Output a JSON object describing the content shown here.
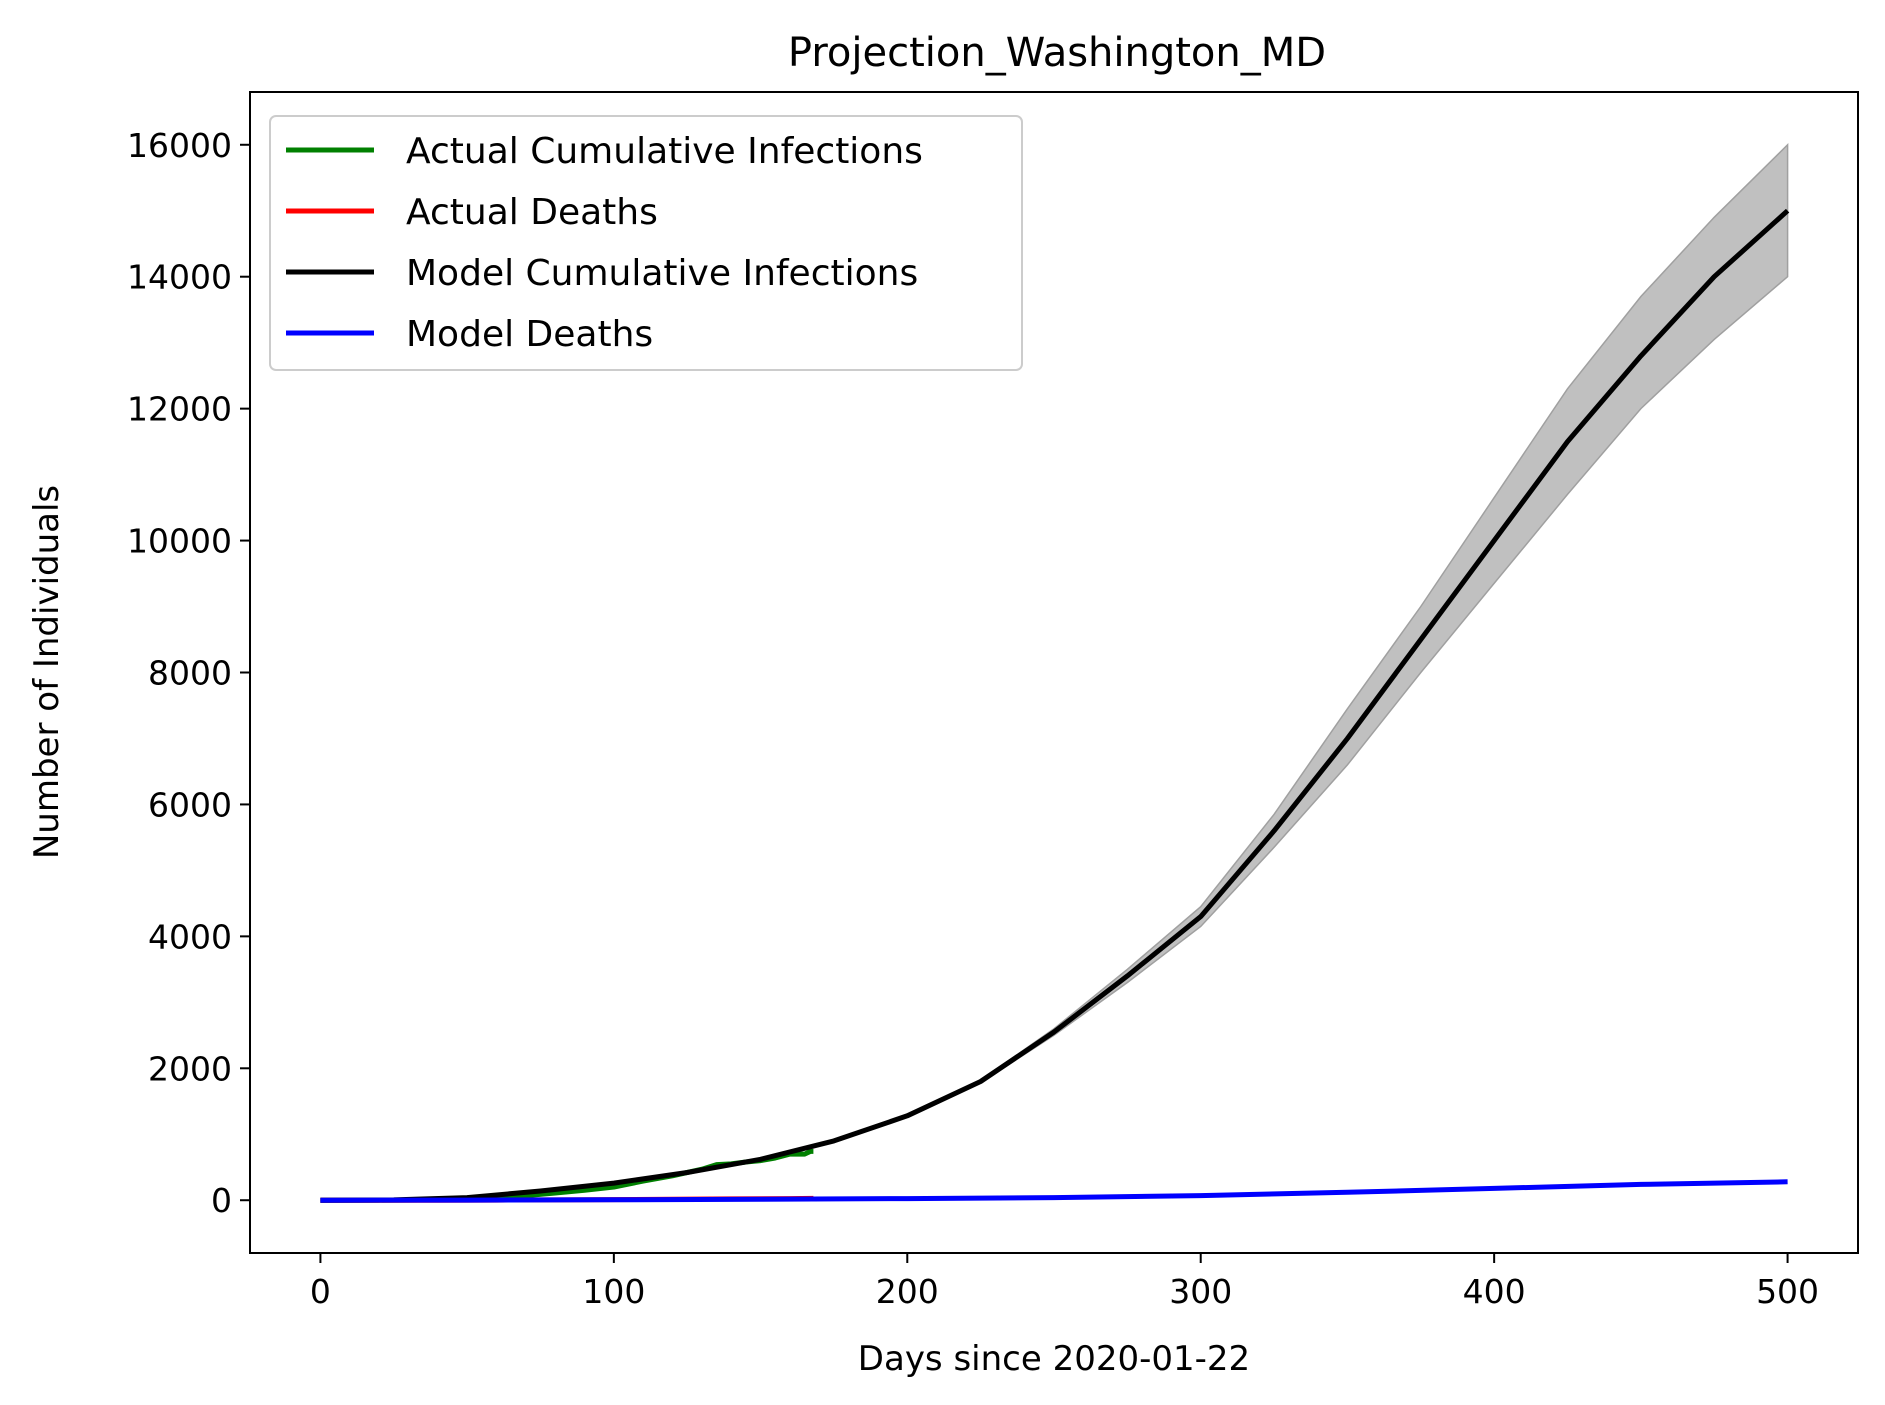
{
  "chart_data": {
    "type": "line",
    "title": "Projection_Washington_MD",
    "xlabel": "Days since 2020-01-22",
    "ylabel": "Number of Individuals",
    "xlim": [
      -24,
      524
    ],
    "ylim": [
      -800,
      16800
    ],
    "xticks": [
      0,
      100,
      200,
      300,
      400,
      500
    ],
    "yticks": [
      0,
      2000,
      4000,
      6000,
      8000,
      10000,
      12000,
      14000,
      16000
    ],
    "grid": false,
    "legend_position": "upper-left",
    "series": [
      {
        "name": "Actual Cumulative Infections",
        "color": "#008000",
        "x": [
          0,
          20,
          40,
          50,
          60,
          70,
          80,
          90,
          100,
          110,
          120,
          125,
          130,
          135,
          140,
          145,
          150,
          155,
          160,
          165,
          167,
          168
        ],
        "y": [
          0,
          0,
          5,
          15,
          40,
          70,
          110,
          150,
          200,
          290,
          370,
          420,
          470,
          540,
          550,
          580,
          600,
          640,
          700,
          700,
          740,
          740
        ]
      },
      {
        "name": "Actual Deaths",
        "color": "#ff0000",
        "x": [
          0,
          40,
          60,
          80,
          100,
          120,
          140,
          160,
          168
        ],
        "y": [
          0,
          0,
          2,
          5,
          10,
          15,
          20,
          25,
          28
        ]
      },
      {
        "name": "Model Cumulative Infections",
        "color": "#000000",
        "x": [
          0,
          25,
          50,
          75,
          100,
          125,
          150,
          175,
          200,
          225,
          250,
          275,
          300,
          325,
          350,
          375,
          400,
          425,
          450,
          475,
          500
        ],
        "y": [
          0,
          5,
          40,
          140,
          260,
          420,
          620,
          900,
          1280,
          1800,
          2550,
          3400,
          4300,
          5600,
          7000,
          8500,
          10000,
          11500,
          12800,
          14000,
          15000
        ]
      },
      {
        "name": "Model Deaths",
        "color": "#0000ff",
        "x": [
          0,
          50,
          100,
          150,
          200,
          250,
          300,
          350,
          400,
          450,
          500
        ],
        "y": [
          0,
          2,
          7,
          15,
          25,
          40,
          70,
          120,
          180,
          240,
          280
        ]
      }
    ],
    "band": {
      "color": "#c0c0c0",
      "x": [
        0,
        25,
        50,
        75,
        100,
        125,
        150,
        175,
        200,
        225,
        250,
        275,
        300,
        325,
        350,
        375,
        400,
        425,
        450,
        475,
        500
      ],
      "lower": [
        0,
        5,
        40,
        140,
        260,
        420,
        620,
        900,
        1280,
        1780,
        2500,
        3300,
        4150,
        5350,
        6600,
        8000,
        9350,
        10700,
        12000,
        13050,
        14000
      ],
      "upper": [
        0,
        5,
        40,
        140,
        260,
        420,
        620,
        900,
        1290,
        1820,
        2600,
        3500,
        4450,
        5850,
        7450,
        9000,
        10650,
        12300,
        13700,
        14900,
        16000
      ]
    }
  }
}
